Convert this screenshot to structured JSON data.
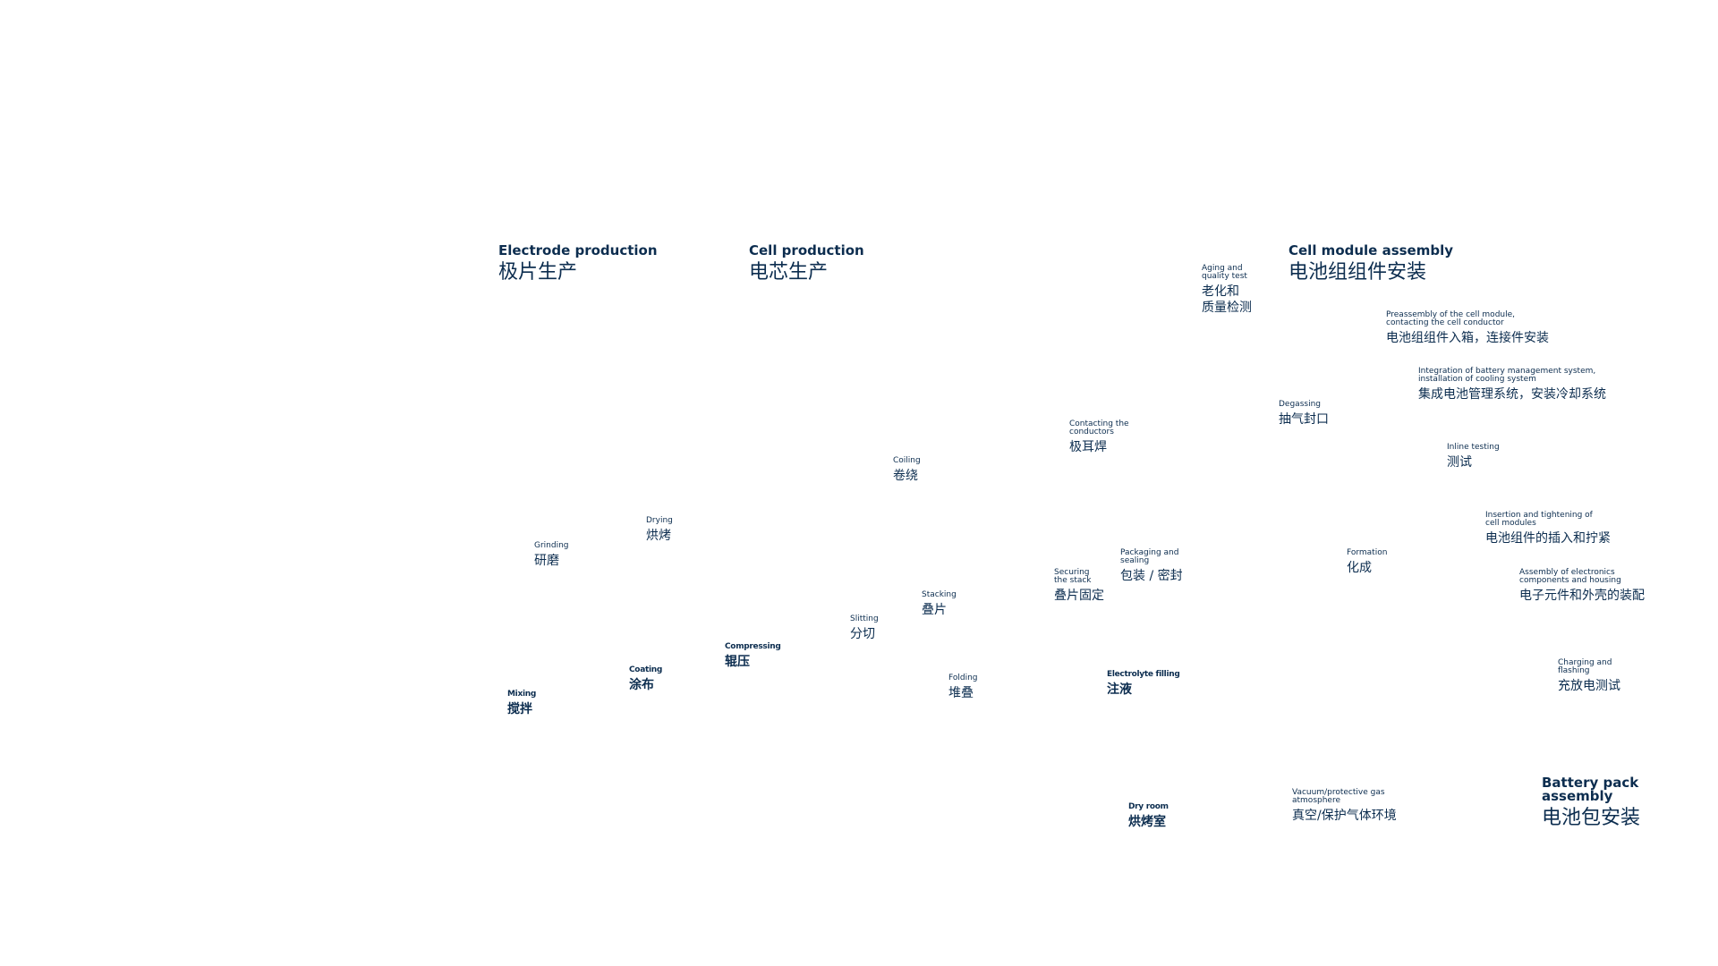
{
  "sections": [
    {
      "en": "Electrode production",
      "zh": "极片生产"
    },
    {
      "en": "Cell production",
      "zh": "电芯生产"
    },
    {
      "en": "Cell module assembly",
      "zh": "电池组组件安装"
    },
    {
      "en": "Battery pack\nassembly",
      "zh": "电池包安装"
    }
  ],
  "steps": [
    {
      "en": "Aging and\nquality test",
      "zh": "老化和\n质量检测"
    },
    {
      "en": "Preassembly of the cell module,\ncontacting the cell conductor",
      "zh": "电池组组件入箱，连接件安装"
    },
    {
      "en": "Integration of battery management system,\ninstallation of cooling system",
      "zh": "集成电池管理系统，安装冷却系统"
    },
    {
      "en": "Degassing",
      "zh": "抽气封口"
    },
    {
      "en": "Inline testing",
      "zh": "测试"
    },
    {
      "en": "Contacting the\nconductors",
      "zh": "极耳焊"
    },
    {
      "en": "Coiling",
      "zh": "卷绕"
    },
    {
      "en": "Insertion and tightening of\ncell modules",
      "zh": "电池组件的插入和拧紧"
    },
    {
      "en": "Drying",
      "zh": "烘烤"
    },
    {
      "en": "Grinding",
      "zh": "研磨"
    },
    {
      "en": "Packaging and\nsealing",
      "zh": "包装 / 密封"
    },
    {
      "en": "Formation",
      "zh": "化成"
    },
    {
      "en": "Securing\nthe stack",
      "zh": "叠片固定"
    },
    {
      "en": "Assembly of electronics\ncomponents and housing",
      "zh": "电子元件和外壳的装配"
    },
    {
      "en": "Stacking",
      "zh": "叠片"
    },
    {
      "en": "Slitting",
      "zh": "分切"
    },
    {
      "en": "Compressing",
      "zh": "辊压",
      "emphasis": true
    },
    {
      "en": "Coating",
      "zh": "涂布",
      "emphasis": true
    },
    {
      "en": "Mixing",
      "zh": "搅拌",
      "emphasis": true
    },
    {
      "en": "Folding",
      "zh": "堆叠"
    },
    {
      "en": "Electrolyte filling",
      "zh": "注液",
      "emphasis": true
    },
    {
      "en": "Charging and\nflashing",
      "zh": "充放电测试"
    },
    {
      "en": "Dry room",
      "zh": "烘烤室",
      "emphasis": true
    },
    {
      "en": "Vacuum/protective gas\natmosphere",
      "zh": "真空/保护气体环境"
    }
  ]
}
